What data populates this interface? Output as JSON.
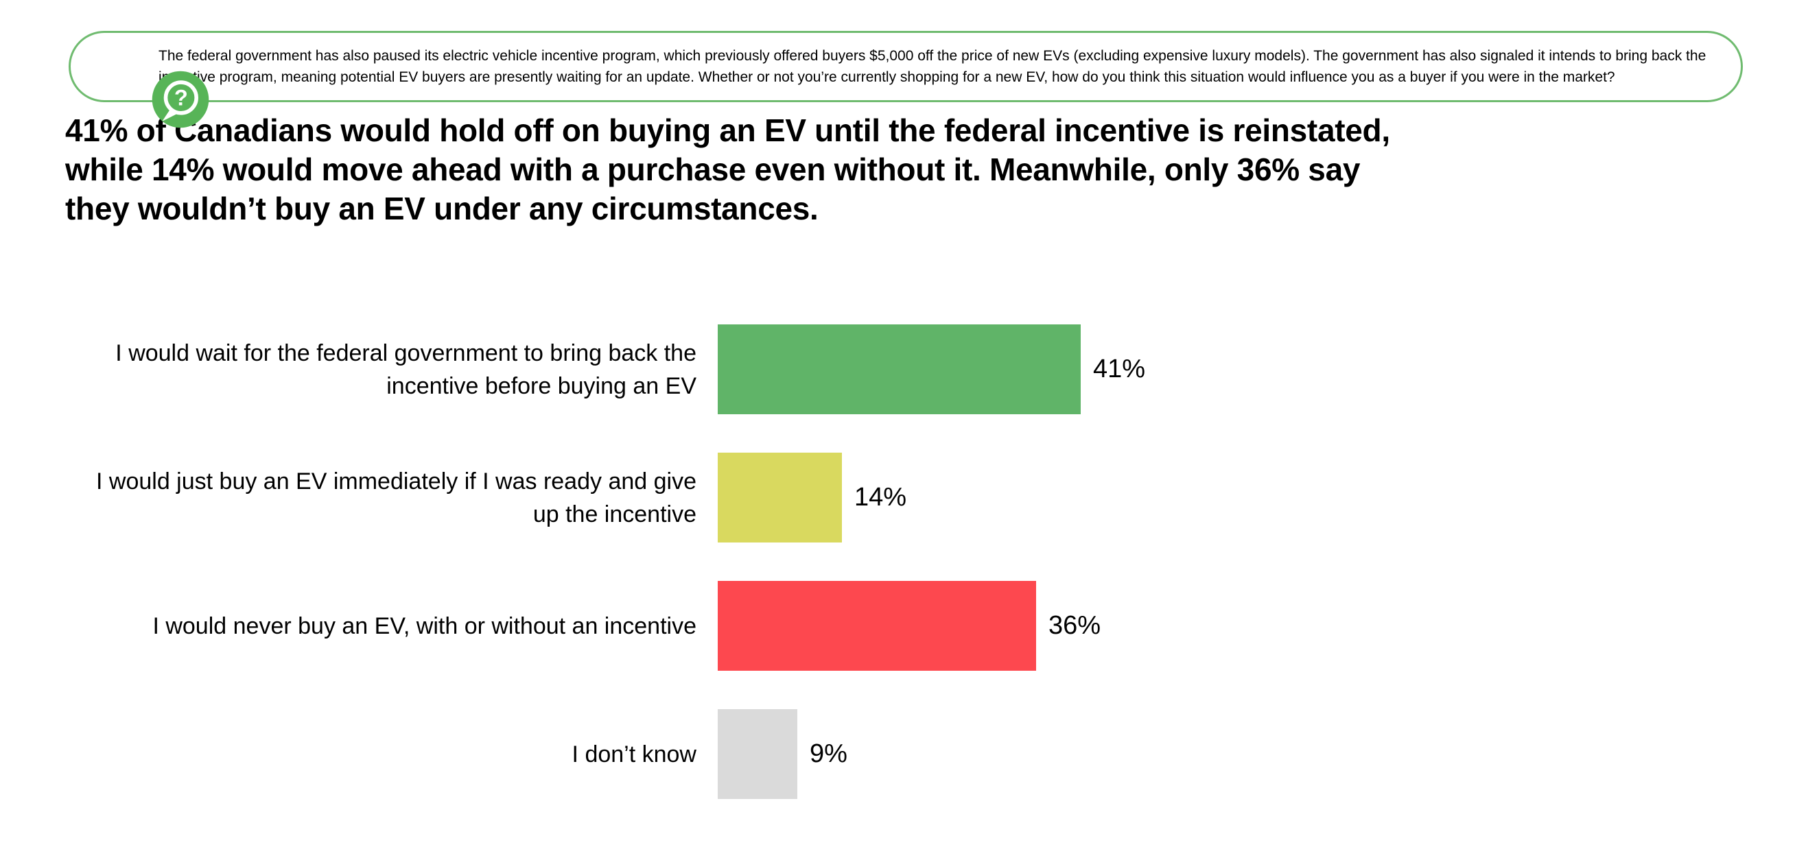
{
  "theme": {
    "border_green": "#6fbb6f",
    "icon_green": "#57b457",
    "text_color": "#000000",
    "background": "#ffffff"
  },
  "question_box": {
    "icon": "question-bubble-icon",
    "text": "The federal government has also paused its electric vehicle incentive program, which previously offered buyers $5,000 off the price of new EVs (excluding expensive luxury models). The government has also signaled it intends to bring back the\nincentive program, meaning potential EV buyers are presently waiting for an update. Whether or not you’re currently shopping for a new EV, how do you think this situation would influence you as a buyer if you were in the market?"
  },
  "headline": {
    "text": "41% of Canadians would hold off on buying an EV until the federal incentive is reinstated,\nwhile 14% would move ahead with a purchase even without it. Meanwhile, only 36% say\nthey wouldn’t buy an EV under any circumstances."
  },
  "chart_data": {
    "type": "bar",
    "orientation": "horizontal",
    "title": "",
    "categories": [
      "I would wait for the federal government to bring back the\nincentive before buying an EV",
      "I would just buy an EV immediately if I was ready and give\nup the incentive",
      "I would never buy an EV, with or without an incentive",
      "I don’t know"
    ],
    "values": [
      41,
      14,
      36,
      9
    ],
    "unit": "%",
    "data_labels": [
      "41%",
      "14%",
      "36%",
      "9%"
    ],
    "bar_colors": [
      "#60b468",
      "#d9d95f",
      "#fd484f",
      "#dadada"
    ],
    "xlim": [
      0,
      100
    ],
    "grid": false,
    "axes_visible": false,
    "legend": "none",
    "value_label_position": "right-of-bar"
  }
}
